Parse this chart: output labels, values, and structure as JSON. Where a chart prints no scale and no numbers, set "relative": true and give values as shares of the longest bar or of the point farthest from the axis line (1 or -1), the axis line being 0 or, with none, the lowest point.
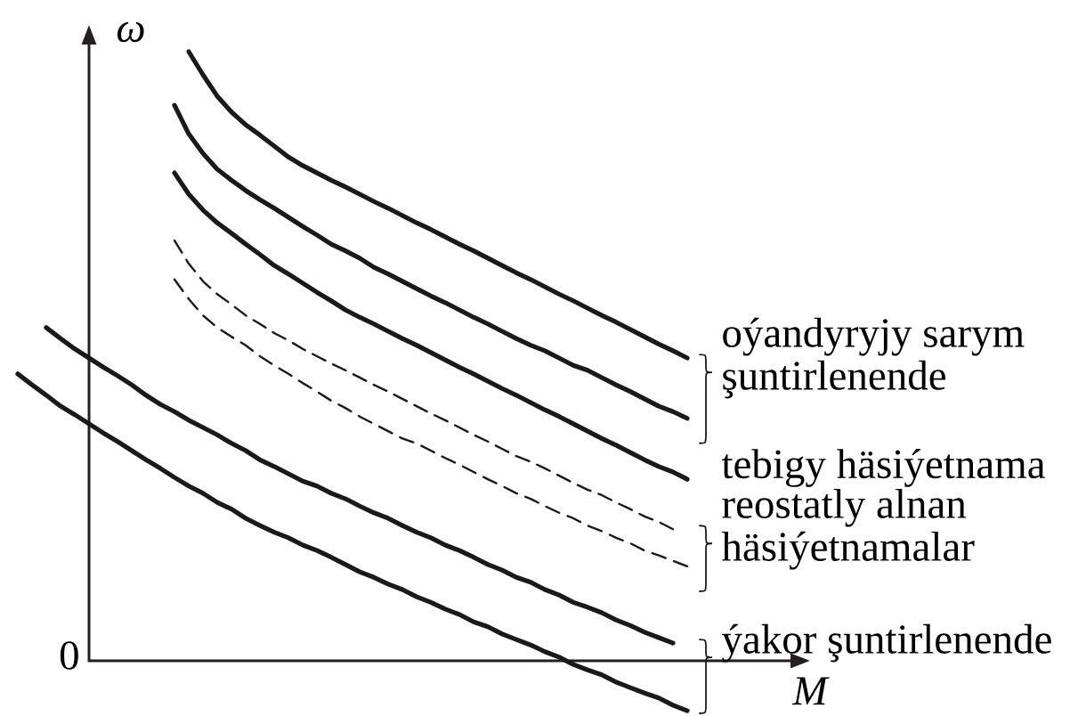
{
  "chart_data": {
    "type": "line",
    "xlabel": "M",
    "ylabel": "ω",
    "relative": true,
    "line_style": "solid",
    "legend": "right",
    "annotations": [
      "0"
    ],
    "categories": [
      null,
      null,
      null,
      null,
      null,
      null,
      null,
      null,
      null,
      null,
      null,
      null,
      null,
      null,
      null,
      null,
      null,
      null,
      null,
      null,
      null,
      null,
      null,
      null,
      null,
      null,
      null,
      null,
      null,
      null,
      null,
      null,
      null,
      null,
      null,
      null,
      null,
      null,
      null,
      null,
      null,
      null,
      null,
      null,
      null,
      null,
      null,
      null,
      null
    ],
    "series": [
      {
        "name": "oýandyryjy sarym şuntirlenende",
        "color": "#1a1a1a",
        "values": [
          null,
          null,
          null,
          null,
          null,
          null,
          null,
          null,
          null,
          null,
          null,
          null,
          null,
          1.0,
          0.962,
          0.927,
          0.901,
          0.88,
          0.863,
          0.845,
          0.827,
          0.813,
          0.801,
          0.789,
          0.778,
          0.766,
          0.754,
          0.743,
          0.731,
          0.719,
          0.708,
          0.696,
          0.684,
          0.673,
          0.661,
          0.649,
          0.637,
          0.626,
          0.614,
          0.602,
          0.591,
          0.579,
          0.567,
          0.556,
          0.544,
          0.532,
          0.52,
          0.509,
          0.497
        ]
      },
      {
        "color": "#1a1a1a",
        "values": [
          null,
          null,
          null,
          null,
          null,
          null,
          null,
          null,
          null,
          null,
          null,
          null,
          0.912,
          0.865,
          0.833,
          0.807,
          0.789,
          0.772,
          0.757,
          0.743,
          0.728,
          0.713,
          0.699,
          0.684,
          0.673,
          0.661,
          0.646,
          0.635,
          0.623,
          0.611,
          0.599,
          0.588,
          0.576,
          0.564,
          0.553,
          0.541,
          0.529,
          0.518,
          0.509,
          0.497,
          0.485,
          0.477,
          0.465,
          0.453,
          0.442,
          0.43,
          0.418,
          0.409,
          0.398
        ]
      },
      {
        "name": "tebigy häsiýetnama",
        "color": "#1a1a1a",
        "values": [
          null,
          null,
          null,
          null,
          null,
          null,
          null,
          null,
          null,
          null,
          null,
          null,
          0.801,
          0.766,
          0.74,
          0.719,
          0.702,
          0.684,
          0.667,
          0.649,
          0.635,
          0.62,
          0.605,
          0.591,
          0.576,
          0.564,
          0.553,
          0.541,
          0.529,
          0.518,
          0.506,
          0.494,
          0.482,
          0.471,
          0.459,
          0.447,
          0.436,
          0.424,
          0.412,
          0.401,
          0.389,
          0.377,
          0.365,
          0.354,
          0.342,
          0.33,
          0.319,
          0.31,
          0.298
        ]
      },
      {
        "name": "reostatly alnan häsiýetnamalar",
        "color": "#1a1a1a",
        "line_style": "dashed",
        "values": [
          null,
          null,
          null,
          null,
          null,
          null,
          null,
          null,
          null,
          null,
          null,
          null,
          0.69,
          0.652,
          0.623,
          0.602,
          0.585,
          0.567,
          0.553,
          0.538,
          0.526,
          0.512,
          0.5,
          0.488,
          0.477,
          0.465,
          0.453,
          0.442,
          0.43,
          0.418,
          0.406,
          0.395,
          0.383,
          0.371,
          0.36,
          0.348,
          0.336,
          0.327,
          0.316,
          0.304,
          0.292,
          0.281,
          0.272,
          0.26,
          0.249,
          0.237,
          0.228,
          0.216,
          null
        ]
      },
      {
        "color": "#1a1a1a",
        "line_style": "dashed",
        "values": [
          null,
          null,
          null,
          null,
          null,
          null,
          null,
          null,
          null,
          null,
          null,
          null,
          0.626,
          0.594,
          0.567,
          0.547,
          0.532,
          0.518,
          0.5,
          0.485,
          0.471,
          0.456,
          0.442,
          0.427,
          0.415,
          0.401,
          0.389,
          0.377,
          0.365,
          0.357,
          0.345,
          0.333,
          0.322,
          0.31,
          0.298,
          0.287,
          0.275,
          0.266,
          0.254,
          0.243,
          0.234,
          0.222,
          0.213,
          0.202,
          0.193,
          0.181,
          0.173,
          0.164,
          0.155
        ]
      },
      {
        "name": "ýakor şuntirlenende",
        "color": "#1a1a1a",
        "values": [
          null,
          null,
          null,
          0.547,
          0.529,
          0.512,
          0.497,
          0.482,
          0.468,
          0.453,
          0.436,
          0.421,
          0.409,
          0.395,
          0.383,
          0.371,
          0.357,
          0.345,
          0.33,
          0.319,
          0.307,
          0.295,
          0.287,
          0.275,
          0.266,
          0.254,
          0.243,
          0.234,
          0.222,
          0.211,
          0.202,
          0.19,
          0.181,
          0.17,
          0.158,
          0.149,
          0.137,
          0.129,
          0.117,
          0.108,
          0.096,
          0.088,
          0.079,
          0.067,
          0.058,
          0.047,
          0.038,
          0.029,
          null
        ]
      },
      {
        "color": "#1a1a1a",
        "values": [
          null,
          0.471,
          0.453,
          0.436,
          0.418,
          0.404,
          0.389,
          0.374,
          0.36,
          0.345,
          0.33,
          0.316,
          0.301,
          0.287,
          0.275,
          0.26,
          0.249,
          0.234,
          0.222,
          0.211,
          0.202,
          0.19,
          0.181,
          0.17,
          0.158,
          0.146,
          0.137,
          0.126,
          0.117,
          0.105,
          0.096,
          0.085,
          0.076,
          0.064,
          0.056,
          0.044,
          0.035,
          0.026,
          0.015,
          0.006,
          -0.006,
          -0.015,
          -0.023,
          -0.035,
          -0.044,
          -0.053,
          -0.061,
          -0.073,
          -0.082
        ]
      }
    ]
  }
}
